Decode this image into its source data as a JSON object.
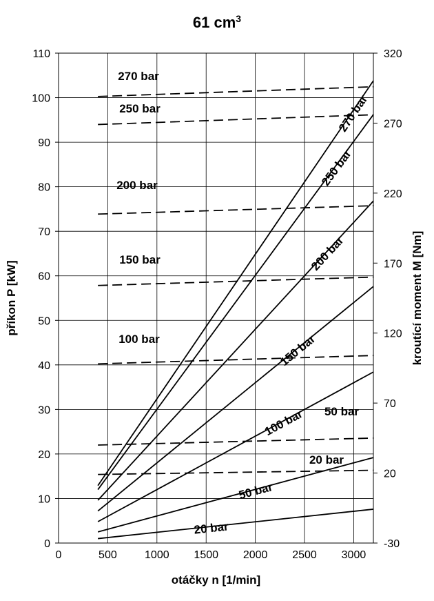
{
  "chart_data": {
    "type": "line",
    "title": "61 cm",
    "title_superscript": "3",
    "xlabel": "otáčky n [1/min]",
    "ylabel": "příkon P [kW]",
    "y2label": "kroutící moment M [Nm]",
    "xlim": [
      0,
      3200
    ],
    "ylim": [
      0,
      110
    ],
    "y2lim": [
      -30,
      320
    ],
    "x_ticks": [
      "0",
      "500",
      "1000",
      "1500",
      "2000",
      "2500",
      "3000"
    ],
    "y_ticks": [
      "0",
      "10",
      "20",
      "30",
      "40",
      "50",
      "60",
      "70",
      "80",
      "90",
      "100",
      "110"
    ],
    "y2_ticks": [
      "-30",
      "20",
      "70",
      "120",
      "170",
      "220",
      "270",
      "320"
    ],
    "grid": true,
    "power_series": [
      {
        "name": "20 bar",
        "x": [
          400,
          3200
        ],
        "y": [
          1.0,
          7.6
        ]
      },
      {
        "name": "50 bar",
        "x": [
          400,
          3200
        ],
        "y": [
          2.5,
          19.2
        ]
      },
      {
        "name": "100 bar",
        "x": [
          400,
          3200
        ],
        "y": [
          4.8,
          38.4
        ]
      },
      {
        "name": "150 bar",
        "x": [
          400,
          3200
        ],
        "y": [
          7.2,
          57.6
        ]
      },
      {
        "name": "200 bar",
        "x": [
          400,
          3200
        ],
        "y": [
          9.6,
          76.8
        ]
      },
      {
        "name": "250 bar",
        "x": [
          400,
          3200
        ],
        "y": [
          12.0,
          96.2
        ]
      },
      {
        "name": "270 bar",
        "x": [
          400,
          3200
        ],
        "y": [
          12.9,
          103.8
        ]
      }
    ],
    "torque_series": [
      {
        "name": "20 bar",
        "x": [
          400,
          3200
        ],
        "y": [
          19,
          22
        ]
      },
      {
        "name": "50 bar",
        "x": [
          400,
          3200
        ],
        "y": [
          40,
          45
        ]
      },
      {
        "name": "100 bar",
        "x": [
          400,
          3200
        ],
        "y": [
          98,
          104
        ]
      },
      {
        "name": "150 bar",
        "x": [
          400,
          3200
        ],
        "y": [
          154,
          160
        ]
      },
      {
        "name": "200 bar",
        "x": [
          400,
          3200
        ],
        "y": [
          205,
          211
        ]
      },
      {
        "name": "250 bar",
        "x": [
          400,
          3200
        ],
        "y": [
          269,
          276
        ]
      },
      {
        "name": "270 bar",
        "x": [
          400,
          3200
        ],
        "y": [
          289,
          296
        ]
      }
    ]
  }
}
